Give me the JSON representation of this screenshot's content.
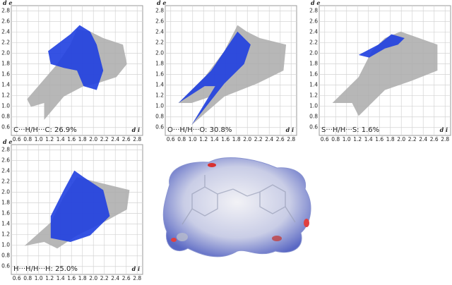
{
  "chart_data": [
    {
      "type": "fingerprint",
      "annotation": "C···H/H···C: 26.9%",
      "x_label": "d i",
      "y_label": "d e",
      "xlim": [
        0.5,
        2.9
      ],
      "ylim": [
        0.45,
        2.9
      ],
      "grid": true,
      "colors": {
        "all": "#aaaaaa",
        "highlight": "#1f3fe0"
      },
      "xticks": [
        0.6,
        0.8,
        {
          "value": 1,
          "label": "1.0"
        },
        1.2,
        1.4,
        1.6,
        1.8,
        {
          "value": 2,
          "label": "2.0"
        },
        2.2,
        2.4,
        2.6,
        2.8
      ],
      "yticks": [
        0.6,
        0.8,
        {
          "value": 1,
          "label": "1.0"
        },
        1.2,
        1.4,
        1.6,
        1.8,
        {
          "value": 2,
          "label": "2.0"
        },
        2.2,
        2.4,
        2.6,
        2.8
      ]
    },
    {
      "type": "fingerprint",
      "annotation": "O···H/H···O: 30.8%",
      "x_label": "d i",
      "y_label": "d e",
      "xlim": [
        0.5,
        2.9
      ],
      "ylim": [
        0.45,
        2.9
      ],
      "grid": true,
      "colors": {
        "all": "#aaaaaa",
        "highlight": "#1f3fe0"
      },
      "xticks": [
        0.6,
        0.8,
        {
          "value": 1,
          "label": "1.0"
        },
        1.2,
        1.4,
        1.6,
        1.8,
        {
          "value": 2,
          "label": "2.0"
        },
        2.2,
        2.4,
        2.6,
        2.8
      ],
      "yticks": [
        0.6,
        0.8,
        {
          "value": 1,
          "label": "1.0"
        },
        1.2,
        1.4,
        1.6,
        1.8,
        {
          "value": 2,
          "label": "2.0"
        },
        2.2,
        2.4,
        2.6,
        2.8
      ]
    },
    {
      "type": "fingerprint",
      "annotation": "S···H/H···S: 1.6%",
      "x_label": "d i",
      "y_label": "d e",
      "xlim": [
        0.5,
        2.9
      ],
      "ylim": [
        0.45,
        2.9
      ],
      "grid": true,
      "colors": {
        "all": "#aaaaaa",
        "highlight": "#1f3fe0"
      },
      "xticks": [
        0.6,
        0.8,
        {
          "value": 1,
          "label": "1.0"
        },
        1.2,
        1.4,
        1.6,
        1.8,
        {
          "value": 2,
          "label": "2.0"
        },
        2.2,
        2.4,
        2.6,
        2.8
      ],
      "yticks": [
        0.6,
        0.8,
        {
          "value": 1,
          "label": "1.0"
        },
        1.2,
        1.4,
        1.6,
        1.8,
        {
          "value": 2,
          "label": "2.0"
        },
        2.2,
        2.4,
        2.6,
        2.8
      ]
    },
    {
      "type": "fingerprint",
      "annotation": "H···H/H···H: 25.0%",
      "x_label": "d i",
      "y_label": "d e",
      "xlim": [
        0.5,
        2.9
      ],
      "ylim": [
        0.45,
        2.9
      ],
      "grid": true,
      "colors": {
        "all": "#aaaaaa",
        "highlight": "#1f3fe0"
      },
      "xticks": [
        0.6,
        0.8,
        {
          "value": 1,
          "label": "1.0"
        },
        1.2,
        1.4,
        1.6,
        1.8,
        {
          "value": 2,
          "label": "2.0"
        },
        2.2,
        2.4,
        2.6,
        2.8
      ],
      "yticks": [
        0.6,
        0.8,
        {
          "value": 1,
          "label": "1.0"
        },
        1.2,
        1.4,
        1.6,
        1.8,
        {
          "value": 2,
          "label": "2.0"
        },
        2.2,
        2.4,
        2.6,
        2.8
      ]
    }
  ]
}
